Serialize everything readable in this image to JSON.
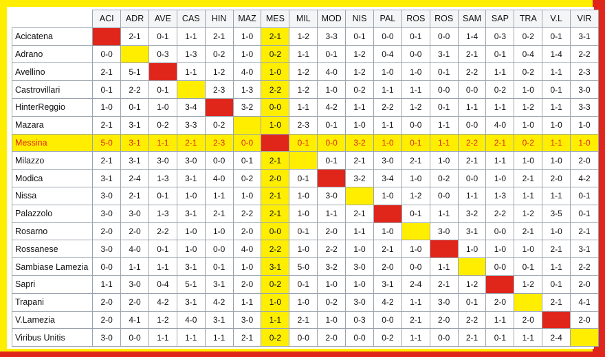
{
  "columns": [
    "ACI",
    "ADR",
    "AVE",
    "CAS",
    "HIN",
    "MAZ",
    "MES",
    "MIL",
    "MOD",
    "NIS",
    "PAL",
    "ROS",
    "ROS",
    "SAM",
    "SAP",
    "TRA",
    "V.L",
    "VIR"
  ],
  "highlight_col": 6,
  "highlight_row": 6,
  "colors": {
    "yellow": "#ffee00",
    "red": "#e0261b",
    "accent_text": "#e0261b"
  },
  "rows": [
    {
      "team": "Acicatena",
      "cells": [
        "",
        "2-1",
        "0-1",
        "1-1",
        "2-1",
        "1-0",
        "2-1",
        "1-2",
        "3-3",
        "0-1",
        "0-0",
        "0-1",
        "0-0",
        "1-4",
        "0-3",
        "0-2",
        "0-1",
        "3-1"
      ],
      "diag": "red"
    },
    {
      "team": "Adrano",
      "cells": [
        "0-0",
        "",
        "0-3",
        "1-3",
        "0-2",
        "1-0",
        "0-2",
        "1-1",
        "0-1",
        "1-2",
        "0-4",
        "0-0",
        "3-1",
        "2-1",
        "0-1",
        "0-4",
        "1-4",
        "2-2"
      ],
      "diag": "yellow"
    },
    {
      "team": "Avellino",
      "cells": [
        "2-1",
        "5-1",
        "",
        "1-1",
        "1-2",
        "4-0",
        "1-0",
        "1-2",
        "4-0",
        "1-2",
        "1-0",
        "1-0",
        "0-1",
        "2-2",
        "1-1",
        "0-2",
        "1-1",
        "2-3"
      ],
      "diag": "red"
    },
    {
      "team": "Castrovillari",
      "cells": [
        "0-1",
        "2-2",
        "0-1",
        "",
        "2-3",
        "1-3",
        "2-2",
        "1-2",
        "1-0",
        "0-2",
        "1-1",
        "1-1",
        "0-0",
        "0-0",
        "0-2",
        "1-0",
        "0-1",
        "3-0"
      ],
      "diag": "yellow"
    },
    {
      "team": "HinterReggio",
      "cells": [
        "1-0",
        "0-1",
        "1-0",
        "3-4",
        "",
        "3-2",
        "0-0",
        "1-1",
        "4-2",
        "1-1",
        "2-2",
        "1-2",
        "0-1",
        "1-1",
        "1-1",
        "1-2",
        "1-1",
        "3-3"
      ],
      "diag": "red"
    },
    {
      "team": "Mazara",
      "cells": [
        "2-1",
        "3-1",
        "0-2",
        "3-3",
        "0-2",
        "",
        "1-0",
        "2-3",
        "0-1",
        "1-0",
        "1-1",
        "0-0",
        "1-1",
        "0-0",
        "4-0",
        "1-0",
        "1-0",
        "1-0"
      ],
      "diag": "yellow"
    },
    {
      "team": "Messina",
      "cells": [
        "5-0",
        "3-1",
        "1-1",
        "2-1",
        "2-3",
        "0-0",
        "",
        "0-1",
        "0-0",
        "3-2",
        "1-0",
        "0-1",
        "1-1",
        "2-2",
        "2-1",
        "0-2",
        "1-1",
        "1-0"
      ],
      "diag": "red"
    },
    {
      "team": "Milazzo",
      "cells": [
        "2-1",
        "3-1",
        "3-0",
        "3-0",
        "0-0",
        "0-1",
        "2-1",
        "",
        "0-1",
        "2-1",
        "3-0",
        "2-1",
        "1-0",
        "2-1",
        "1-1",
        "1-0",
        "1-0",
        "2-0"
      ],
      "diag": "yellow"
    },
    {
      "team": "Modica",
      "cells": [
        "3-1",
        "2-4",
        "1-3",
        "3-1",
        "4-0",
        "0-2",
        "2-0",
        "0-1",
        "",
        "3-2",
        "3-4",
        "1-0",
        "0-2",
        "0-0",
        "1-0",
        "2-1",
        "2-0",
        "4-2"
      ],
      "diag": "red"
    },
    {
      "team": "Nissa",
      "cells": [
        "3-0",
        "2-1",
        "0-1",
        "1-0",
        "1-1",
        "1-0",
        "2-1",
        "1-0",
        "3-0",
        "",
        "1-0",
        "1-2",
        "0-0",
        "1-1",
        "1-3",
        "1-1",
        "1-1",
        "0-1"
      ],
      "diag": "yellow"
    },
    {
      "team": "Palazzolo",
      "cells": [
        "3-0",
        "3-0",
        "1-3",
        "3-1",
        "2-1",
        "2-2",
        "2-1",
        "1-0",
        "1-1",
        "2-1",
        "",
        "0-1",
        "1-1",
        "3-2",
        "2-2",
        "1-2",
        "3-5",
        "0-1"
      ],
      "diag": "red"
    },
    {
      "team": "Rosarno",
      "cells": [
        "2-0",
        "2-0",
        "2-2",
        "1-0",
        "1-0",
        "2-0",
        "0-0",
        "0-1",
        "2-0",
        "1-1",
        "1-0",
        "",
        "3-0",
        "3-1",
        "0-0",
        "2-1",
        "1-0",
        "2-1"
      ],
      "diag": "yellow"
    },
    {
      "team": "Rossanese",
      "cells": [
        "3-0",
        "4-0",
        "0-1",
        "1-0",
        "0-0",
        "4-0",
        "2-2",
        "1-0",
        "2-2",
        "1-0",
        "2-1",
        "1-0",
        "",
        "1-0",
        "1-0",
        "1-0",
        "2-1",
        "3-1"
      ],
      "diag": "red"
    },
    {
      "team": "Sambiase Lamezia",
      "cells": [
        "0-0",
        "1-1",
        "1-1",
        "3-1",
        "0-1",
        "1-0",
        "3-1",
        "5-0",
        "3-2",
        "3-0",
        "2-0",
        "0-0",
        "1-1",
        "",
        "0-0",
        "0-1",
        "1-1",
        "2-2"
      ],
      "diag": "yellow"
    },
    {
      "team": "Sapri",
      "cells": [
        "1-1",
        "3-0",
        "0-4",
        "5-1",
        "3-1",
        "2-0",
        "0-2",
        "0-1",
        "1-0",
        "1-0",
        "3-1",
        "2-4",
        "2-1",
        "1-2",
        "",
        "1-2",
        "0-1",
        "2-0"
      ],
      "diag": "red"
    },
    {
      "team": "Trapani",
      "cells": [
        "2-0",
        "2-0",
        "4-2",
        "3-1",
        "4-2",
        "1-1",
        "1-0",
        "1-0",
        "0-2",
        "3-0",
        "4-2",
        "1-1",
        "3-0",
        "0-1",
        "2-0",
        "",
        "2-1",
        "4-1"
      ],
      "diag": "yellow"
    },
    {
      "team": "V.Lamezia",
      "cells": [
        "2-0",
        "4-1",
        "1-2",
        "4-0",
        "3-1",
        "3-0",
        "1-1",
        "2-1",
        "1-0",
        "0-3",
        "0-0",
        "2-1",
        "2-0",
        "2-2",
        "1-1",
        "2-0",
        "",
        "2-0"
      ],
      "diag": "red"
    },
    {
      "team": "Viribus Unitis",
      "cells": [
        "3-0",
        "0-0",
        "1-1",
        "1-1",
        "1-1",
        "2-1",
        "0-2",
        "0-0",
        "2-0",
        "0-0",
        "0-2",
        "1-1",
        "0-0",
        "2-1",
        "0-1",
        "1-1",
        "2-4",
        ""
      ],
      "diag": "yellow"
    }
  ]
}
